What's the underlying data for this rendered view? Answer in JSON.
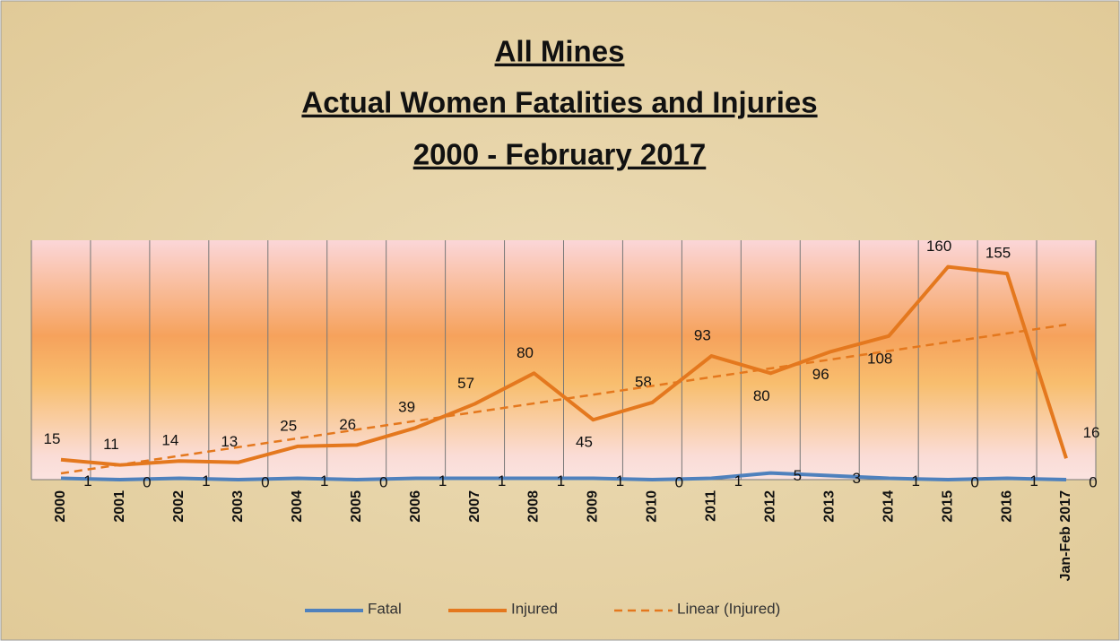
{
  "chart_data": {
    "type": "line",
    "title": [
      "All Mines",
      "Actual Women Fatalities and Injuries",
      "2000 - February 2017"
    ],
    "categories": [
      "2000",
      "2001",
      "2002",
      "2003",
      "2004",
      "2005",
      "2006",
      "2007",
      "2008",
      "2009",
      "2010",
      "2011",
      "2012",
      "2013",
      "2014",
      "2015",
      "2016",
      "Jan-Feb 2017"
    ],
    "series": [
      {
        "name": "Fatal",
        "color": "#4f81bd",
        "values": [
          1,
          0,
          1,
          0,
          1,
          0,
          1,
          1,
          1,
          1,
          0,
          1,
          5,
          3,
          1,
          0,
          1,
          0
        ]
      },
      {
        "name": "Injured",
        "color": "#e4781e",
        "values": [
          15,
          11,
          14,
          13,
          25,
          26,
          39,
          57,
          80,
          45,
          58,
          93,
          80,
          96,
          108,
          160,
          155,
          16
        ]
      }
    ],
    "trendline": {
      "name": "Linear (Injured)",
      "color": "#e4781e"
    },
    "ylim": [
      0,
      180
    ],
    "legend": "bottom"
  }
}
